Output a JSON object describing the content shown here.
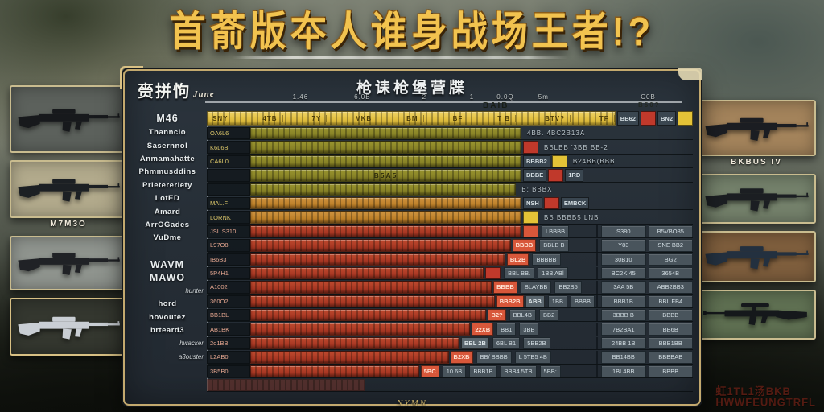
{
  "title": {
    "text": "首萮版夲人谁身战场王者!?"
  },
  "panel": {
    "corner_label": "赍拼怐",
    "corner_script": "June",
    "header_title": "枪诔枪堡营牒",
    "axis_ticks": [
      "1.46",
      "6.0B",
      "2",
      "1",
      "0.0Q",
      "5m",
      "C0B"
    ],
    "axis_label_center": "BAIB",
    "axis_label_right": "B50?",
    "footer": "NYMN"
  },
  "colors": {
    "title_gold": "#f2c34f",
    "panel_border": "#c3a96e",
    "bar_yellow": "#e2bf41",
    "bar_olive": "#878226",
    "bar_orange": "#bd8029",
    "bar_red": "#a83723",
    "chip_red": "#c0392b",
    "chip_yellow": "#e4c337",
    "cell_gray": "#49545c"
  },
  "chart_data": {
    "type": "bar",
    "orientation": "horizontal",
    "title": "枪诔枪堡营牒",
    "categories": [
      "M46",
      "Thanncio",
      "Sasernnol",
      "Anmamahatte",
      "Phmmusddins",
      "Prietereriety",
      "LotED",
      "Amard",
      "ArrOGades",
      "VuDme",
      "",
      "WAVM",
      "MAWO",
      "hunter",
      "hord",
      "hovoutez",
      "brteard3",
      "hwacker",
      "a3ouster",
      ""
    ],
    "values": [
      126,
      100,
      100,
      100,
      100,
      98,
      100,
      100,
      100,
      96,
      94,
      86,
      89,
      91,
      87,
      81,
      77,
      73,
      62,
      58
    ],
    "xlabel": "",
    "ylabel": "",
    "legend": "none",
    "grid": "ticks-top"
  },
  "table": {
    "rows": [
      {
        "label": "M46",
        "lsize": "l",
        "color": "yellow",
        "grow": true,
        "segs": [
          "SNY",
          "4TB",
          "7Y",
          "VKB",
          "BM",
          "BF",
          "T B",
          "BTV?",
          "TF"
        ],
        "chips": [
          {
            "t": "BB62",
            "c": "navy"
          },
          {
            "t": "",
            "c": "red"
          },
          {
            "t": "BN2",
            "c": "navy"
          },
          {
            "t": "",
            "c": "yellow"
          }
        ]
      },
      {
        "label": "Thanncio",
        "lsize": "m",
        "val": "OA6L6",
        "color": "olive",
        "pct": 100,
        "tail": "4BB. 4BC2B13A"
      },
      {
        "label": "Sasernnol",
        "lsize": "m",
        "val": "K6L6B",
        "color": "olive",
        "pct": 100,
        "tail": "BBLBB '3BB BB-2",
        "chips": [
          {
            "t": "",
            "c": "red"
          }
        ]
      },
      {
        "label": "Anmamahatte",
        "lsize": "m",
        "val": "CA6L0",
        "color": "olive",
        "pct": 100,
        "chips": [
          {
            "t": "BBBB2",
            "c": "navy"
          },
          {
            "t": "",
            "c": "yellow"
          }
        ],
        "tail": "B?4BB(BBB"
      },
      {
        "label": "Phmmusddins",
        "lsize": "m",
        "val": "",
        "color": "olive",
        "pct": 100,
        "ctext": "B5A5",
        "chips": [
          {
            "t": "BBBE",
            "c": "navy"
          },
          {
            "t": "",
            "c": "red"
          },
          {
            "t": "1RD",
            "c": "navy"
          }
        ]
      },
      {
        "label": "Prietereriety",
        "lsize": "m",
        "val": "",
        "color": "olive",
        "pct": 98,
        "tail": "B:  BBBX"
      },
      {
        "label": "LotED",
        "lsize": "m",
        "val": "MAL.F",
        "color": "orange",
        "pct": 100,
        "chips": [
          {
            "t": "NSH",
            "c": "navy"
          },
          {
            "t": "",
            "c": "red"
          },
          {
            "t": "EMBCK",
            "c": "navy"
          }
        ]
      },
      {
        "label": "Amard",
        "lsize": "m",
        "val": "LORNK",
        "color": "orange",
        "pct": 100,
        "chips": [
          {
            "t": "",
            "c": "yellow"
          }
        ],
        "tail": "BB  BBBB5 LNB"
      },
      {
        "label": "ArrOGades",
        "lsize": "m",
        "val": "JSL S310",
        "color": "red",
        "pct": 100,
        "chips": [
          {
            "t": "",
            "c": "bright"
          }
        ],
        "cells": [
          "LBBBB"
        ],
        "right": [
          "S380",
          "B5VBO85"
        ]
      },
      {
        "label": "VuDme",
        "lsize": "m",
        "val": "L97O8",
        "color": "red",
        "pct": 96,
        "chips": [
          {
            "t": "BBBB",
            "c": "bright"
          }
        ],
        "cells": [
          "BBLB B"
        ],
        "right": [
          "Y83",
          "SNE BB2"
        ]
      },
      {
        "label": "",
        "lsize": "m",
        "val": "IB6B3",
        "color": "red",
        "pct": 94,
        "chips": [
          {
            "t": "BL2B",
            "c": "bright"
          }
        ],
        "cells": [
          "BBBBB"
        ],
        "right": [
          "30B10",
          "BG2"
        ]
      },
      {
        "label": "WAVM",
        "lsize": "l",
        "val": "5P4H1",
        "color": "red",
        "pct": 86,
        "chips": [
          {
            "t": "",
            "c": "red"
          }
        ],
        "cells": [
          "BBL BB.",
          "1BB ABl"
        ],
        "right": [
          "BC2K 45",
          "3654B"
        ]
      },
      {
        "label": "MAWO",
        "lsize": "l",
        "val": "A1002",
        "color": "red",
        "pct": 89,
        "chips": [
          {
            "t": "BBBB",
            "c": "bright"
          }
        ],
        "cells": [
          "BLAYBB",
          "BB2B5"
        ],
        "right": [
          "3AA 5B",
          "ABB2BB3"
        ]
      },
      {
        "label": "hunter",
        "lsize": "s",
        "val": "360O2",
        "color": "red",
        "pct": 91,
        "chips": [
          {
            "t": "BBB2B",
            "c": "bright"
          },
          {
            "t": "ABB",
            "c": "gray"
          }
        ],
        "cells": [
          "1BB",
          "BBBB"
        ],
        "right": [
          "BBB1B",
          "BBL FB4"
        ]
      },
      {
        "label": "hord",
        "lsize": "m",
        "val": "BB1BL",
        "color": "red",
        "pct": 87,
        "chips": [
          {
            "t": "B2?",
            "c": "bright"
          }
        ],
        "cells": [
          "BBL4B",
          "BB2"
        ],
        "right": [
          "3BBB B",
          "BBBB"
        ]
      },
      {
        "label": "hovoutez",
        "lsize": "m",
        "val": "AB1BK",
        "color": "red",
        "pct": 81,
        "chips": [
          {
            "t": "22XB",
            "c": "bright"
          }
        ],
        "cells": [
          "BB1",
          "3BB"
        ],
        "right": [
          "7B2BA1",
          "BB6B"
        ]
      },
      {
        "label": "brteard3",
        "lsize": "m",
        "val": "2o1BB",
        "color": "red",
        "pct": 77,
        "chips": [
          {
            "t": "BBL 2B",
            "c": "gray"
          }
        ],
        "cells": [
          "6BL B1",
          "5BB2B"
        ],
        "right": [
          "24BB 1B",
          "BBB1BB"
        ]
      },
      {
        "label": "hwacker",
        "lsize": "s",
        "val": "L2AB0",
        "color": "red",
        "pct": 73,
        "chips": [
          {
            "t": "B2XB",
            "c": "bright"
          }
        ],
        "cells": [
          "BB/ BBBB",
          "L 5TB5 4B"
        ],
        "right": [
          "BB14BB",
          "BBBBAB"
        ]
      },
      {
        "label": "a3ouster",
        "lsize": "s",
        "val": "3B5B0",
        "color": "red",
        "pct": 62,
        "chips": [
          {
            "t": "5BC",
            "c": "bright"
          }
        ],
        "cells": [
          "10.6B",
          "BBB1B",
          "BBB4 5TB",
          "5BB:"
        ],
        "right": [
          "1BL4BB",
          "BBBB"
        ]
      },
      {
        "label": "",
        "lsize": "s",
        "val": "",
        "color": "faded",
        "pct": 58
      }
    ]
  },
  "left_cards": [
    {
      "bg": "#5c615c",
      "gun": "#17191c",
      "type": "rifle",
      "caption": ""
    },
    {
      "bg": "#b2aa8c",
      "gun": "#1c2024",
      "type": "rifle",
      "caption": "M7M3O"
    },
    {
      "bg": "#8f948e",
      "gun": "#202226",
      "type": "rifle",
      "caption": ""
    },
    {
      "bg": "#34372f",
      "gun": "#c9ced4",
      "type": "rifle",
      "caption": ""
    }
  ],
  "right_cards": [
    {
      "bg": "#a3835b",
      "gun": "#1b1d22",
      "type": "rifle",
      "caption": "BKBUS IV"
    },
    {
      "bg": "#74816b",
      "gun": "#1b1e22",
      "type": "rifle",
      "caption": ""
    },
    {
      "bg": "#7e5e3d",
      "gun": "#23303f",
      "type": "rifle",
      "caption": ""
    },
    {
      "bg": "#5f7052",
      "gun": "#15181b",
      "type": "sniper",
      "caption": ""
    }
  ],
  "watermark": {
    "line1": "虹1TL1汤BKB",
    "line2": "HWWFEUNGTRFL"
  }
}
